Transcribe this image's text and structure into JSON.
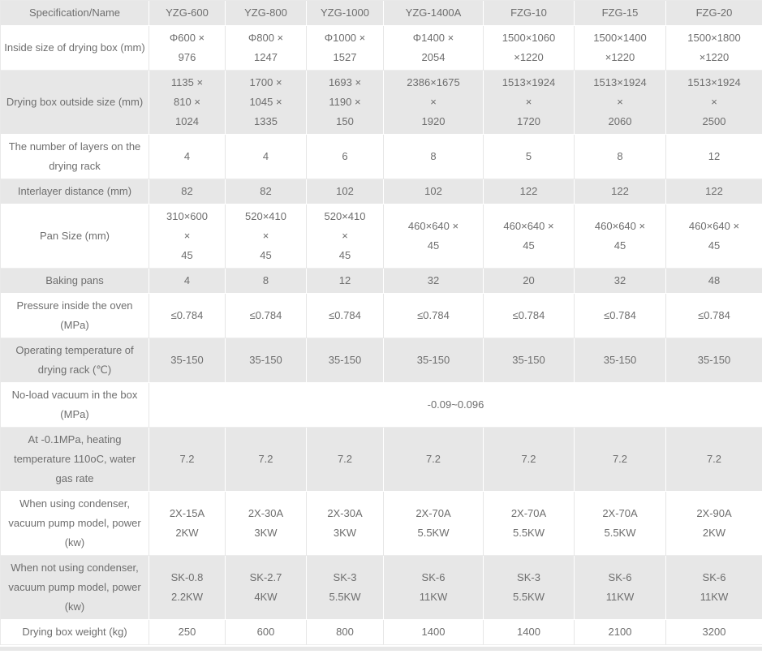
{
  "colors": {
    "stripe_bg": "#e7e7e7",
    "text": "#6e6e6e",
    "grid_on_white": "#e6e6e6",
    "grid_on_gray": "#ffffff"
  },
  "table": {
    "header": [
      "Specification/Name",
      "YZG-600",
      "YZG-800",
      "YZG-1000",
      "YZG-1400A",
      "FZG-10",
      "FZG-15",
      "FZG-20"
    ],
    "rows": [
      {
        "label": "Inside size of drying box (mm)",
        "values": [
          "Φ600 ×\n976",
          "Φ800 ×\n1247",
          "Φ1000 ×\n1527",
          "Φ1400 ×\n2054",
          "1500×1060\n×1220",
          "1500×1400\n×1220",
          "1500×1800\n×1220"
        ]
      },
      {
        "label": "Drying box outside size (mm)",
        "values": [
          "1135 ×\n810 ×\n1024",
          "1700 ×\n1045 ×\n1335",
          "1693 ×\n1190 ×\n150",
          "2386×1675\n×\n1920",
          "1513×1924\n×\n1720",
          "1513×1924\n×\n2060",
          "1513×1924\n×\n2500"
        ]
      },
      {
        "label": "The number of layers on the drying rack",
        "values": [
          "4",
          "4",
          "6",
          "8",
          "5",
          "8",
          "12"
        ]
      },
      {
        "label": "Interlayer distance (mm)",
        "values": [
          "82",
          "82",
          "102",
          "102",
          "122",
          "122",
          "122"
        ]
      },
      {
        "label": "Pan Size (mm)",
        "values": [
          "310×600\n×\n45",
          "520×410\n×\n45",
          "520×410\n×\n45",
          "460×640 ×\n45",
          "460×640 ×\n45",
          "460×640 ×\n45",
          "460×640 ×\n45"
        ]
      },
      {
        "label": "Baking pans",
        "values": [
          "4",
          "8",
          "12",
          "32",
          "20",
          "32",
          "48"
        ]
      },
      {
        "label": "Pressure inside the oven (MPa)",
        "values": [
          "≤0.784",
          "≤0.784",
          "≤0.784",
          "≤0.784",
          "≤0.784",
          "≤0.784",
          "≤0.784"
        ]
      },
      {
        "label": "Operating temperature of drying rack (℃)",
        "values": [
          "35-150",
          "35-150",
          "35-150",
          "35-150",
          "35-150",
          "35-150",
          "35-150"
        ]
      },
      {
        "label": "No-load vacuum in the box (MPa)",
        "merged": true,
        "value": "-0.09~0.096"
      },
      {
        "label": "At -0.1MPa, heating temperature 110oC, water gas rate",
        "values": [
          "7.2",
          "7.2",
          "7.2",
          "7.2",
          "7.2",
          "7.2",
          "7.2"
        ]
      },
      {
        "label": "When using condenser, vacuum pump model, power (kw)",
        "values": [
          "2X-15A\n2KW",
          "2X-30A\n3KW",
          "2X-30A\n3KW",
          "2X-70A\n5.5KW",
          "2X-70A\n5.5KW",
          "2X-70A\n5.5KW",
          "2X-90A\n2KW"
        ]
      },
      {
        "label": "When not using condenser, vacuum pump model, power (kw)",
        "values": [
          "SK-0.8\n2.2KW",
          "SK-2.7\n4KW",
          "SK-3\n5.5KW",
          "SK-6\n11KW",
          "SK-3\n5.5KW",
          "SK-6\n11KW",
          "SK-6\n11KW"
        ]
      },
      {
        "label": "Drying box weight (kg)",
        "values": [
          "250",
          "600",
          "800",
          "1400",
          "1400",
          "2100",
          "3200"
        ]
      }
    ]
  }
}
